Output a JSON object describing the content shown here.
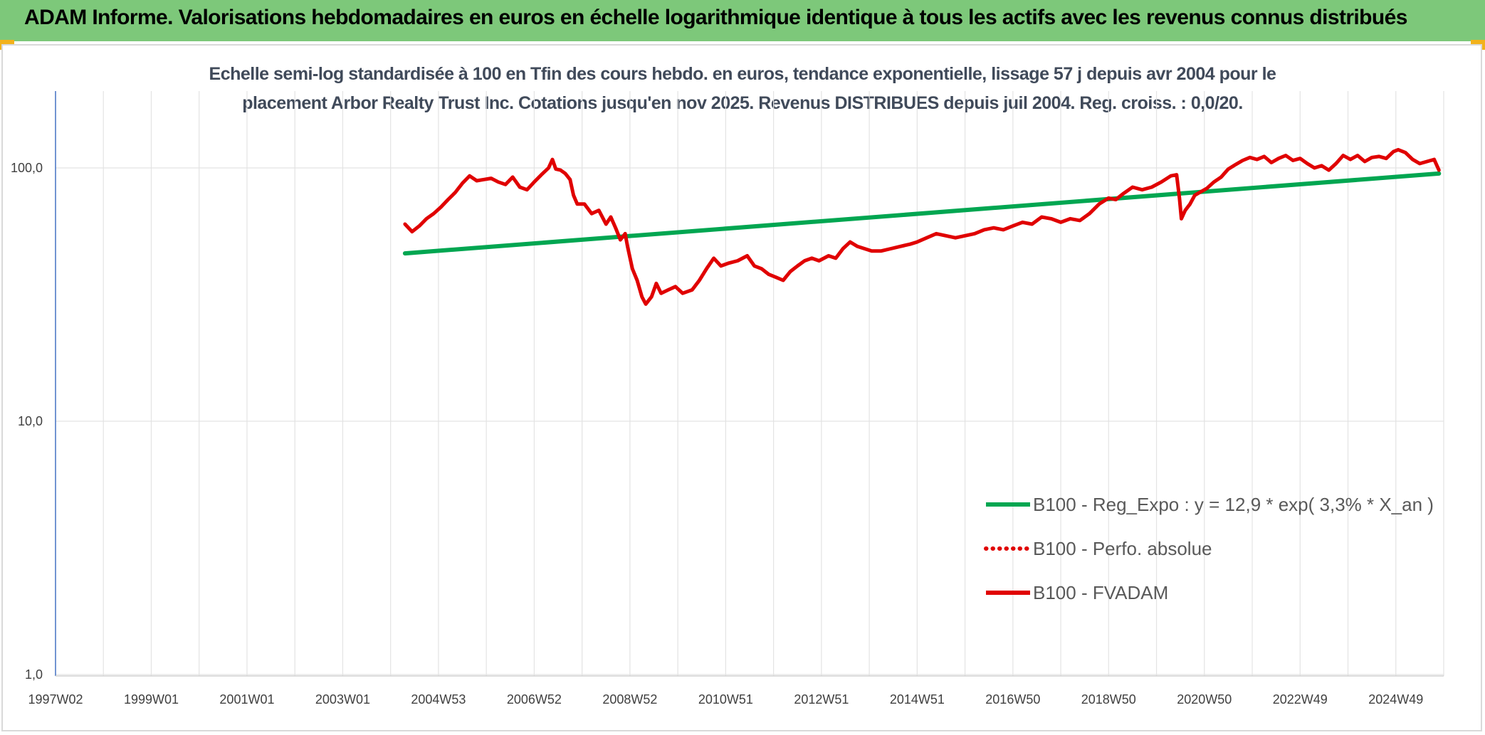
{
  "header": {
    "title": "ADAM Informe. Valorisations hebdomadaires en euros en échelle logarithmique identique à tous les actifs avec les revenus connus distribués"
  },
  "chart_data": {
    "type": "line",
    "title_line1": "Echelle semi-log standardisée à 100 en Tfin des cours hebdo. en euros, tendance exponentielle, lissage 57 j depuis avr 2004 pour le",
    "title_line2": "placement Arbor Realty Trust Inc. Cotations jusqu'en nov 2025. Revenus DISTRIBUES depuis juil 2004. Reg. croiss. : 0,0/20.",
    "yscale": "log",
    "ylim": [
      1,
      200
    ],
    "xlim": [
      1997.0,
      2026.0
    ],
    "y_ticks": [
      {
        "value": 1,
        "label": "1,0"
      },
      {
        "value": 10,
        "label": "10,0"
      },
      {
        "value": 100,
        "label": "100,0"
      }
    ],
    "x_ticks": [
      {
        "x": 1997.0,
        "label": "1997W02"
      },
      {
        "x": 1999.0,
        "label": "1999W01"
      },
      {
        "x": 2001.0,
        "label": "2001W01"
      },
      {
        "x": 2003.0,
        "label": "2003W01"
      },
      {
        "x": 2005.0,
        "label": "2004W53"
      },
      {
        "x": 2007.0,
        "label": "2006W52"
      },
      {
        "x": 2009.0,
        "label": "2008W52"
      },
      {
        "x": 2011.0,
        "label": "2010W51"
      },
      {
        "x": 2013.0,
        "label": "2012W51"
      },
      {
        "x": 2015.0,
        "label": "2014W51"
      },
      {
        "x": 2017.0,
        "label": "2016W50"
      },
      {
        "x": 2019.0,
        "label": "2018W50"
      },
      {
        "x": 2021.0,
        "label": "2020W50"
      },
      {
        "x": 2023.0,
        "label": "2022W49"
      },
      {
        "x": 2025.0,
        "label": "2024W49"
      }
    ],
    "grid": true,
    "legend_position": "bottom-right",
    "series": [
      {
        "name": "B100 - Reg_Expo : y = 12,9 * exp( 3,3% *  X_an )",
        "color": "#00a651",
        "style": "solid",
        "points": [
          [
            2004.3,
            46
          ],
          [
            2025.9,
            95
          ]
        ]
      },
      {
        "name": "B100 - Perfo. absolue",
        "color": "#e00000",
        "style": "dotted",
        "points": []
      },
      {
        "name": "B100 - FVADAM",
        "color": "#e00000",
        "style": "solid",
        "points": [
          [
            2004.3,
            60
          ],
          [
            2004.45,
            56
          ],
          [
            2004.6,
            59
          ],
          [
            2004.75,
            63
          ],
          [
            2004.9,
            66
          ],
          [
            2005.05,
            70
          ],
          [
            2005.2,
            75
          ],
          [
            2005.35,
            80
          ],
          [
            2005.5,
            87
          ],
          [
            2005.65,
            93
          ],
          [
            2005.8,
            89
          ],
          [
            2005.95,
            90
          ],
          [
            2006.1,
            91
          ],
          [
            2006.25,
            88
          ],
          [
            2006.4,
            86
          ],
          [
            2006.55,
            92
          ],
          [
            2006.7,
            84
          ],
          [
            2006.85,
            82
          ],
          [
            2007.0,
            88
          ],
          [
            2007.15,
            94
          ],
          [
            2007.3,
            100
          ],
          [
            2007.38,
            108
          ],
          [
            2007.45,
            99
          ],
          [
            2007.55,
            98
          ],
          [
            2007.65,
            95
          ],
          [
            2007.75,
            90
          ],
          [
            2007.82,
            78
          ],
          [
            2007.9,
            72
          ],
          [
            2008.05,
            72
          ],
          [
            2008.2,
            66
          ],
          [
            2008.35,
            68
          ],
          [
            2008.5,
            60
          ],
          [
            2008.6,
            64
          ],
          [
            2008.7,
            58
          ],
          [
            2008.8,
            52
          ],
          [
            2008.9,
            55
          ],
          [
            2008.95,
            49
          ],
          [
            2009.05,
            40
          ],
          [
            2009.15,
            36
          ],
          [
            2009.25,
            31
          ],
          [
            2009.33,
            29
          ],
          [
            2009.45,
            31
          ],
          [
            2009.55,
            35
          ],
          [
            2009.65,
            32
          ],
          [
            2009.8,
            33
          ],
          [
            2009.95,
            34
          ],
          [
            2010.1,
            32
          ],
          [
            2010.3,
            33
          ],
          [
            2010.45,
            36
          ],
          [
            2010.6,
            40
          ],
          [
            2010.75,
            44
          ],
          [
            2010.9,
            41
          ],
          [
            2011.05,
            42
          ],
          [
            2011.25,
            43
          ],
          [
            2011.45,
            45
          ],
          [
            2011.6,
            41
          ],
          [
            2011.75,
            40
          ],
          [
            2011.9,
            38
          ],
          [
            2012.05,
            37
          ],
          [
            2012.2,
            36
          ],
          [
            2012.35,
            39
          ],
          [
            2012.5,
            41
          ],
          [
            2012.65,
            43
          ],
          [
            2012.8,
            44
          ],
          [
            2012.95,
            43
          ],
          [
            2013.15,
            45
          ],
          [
            2013.3,
            44
          ],
          [
            2013.45,
            48
          ],
          [
            2013.6,
            51
          ],
          [
            2013.75,
            49
          ],
          [
            2013.9,
            48
          ],
          [
            2014.05,
            47
          ],
          [
            2014.25,
            47
          ],
          [
            2014.45,
            48
          ],
          [
            2014.65,
            49
          ],
          [
            2014.85,
            50
          ],
          [
            2015.0,
            51
          ],
          [
            2015.2,
            53
          ],
          [
            2015.4,
            55
          ],
          [
            2015.6,
            54
          ],
          [
            2015.8,
            53
          ],
          [
            2016.0,
            54
          ],
          [
            2016.2,
            55
          ],
          [
            2016.4,
            57
          ],
          [
            2016.6,
            58
          ],
          [
            2016.8,
            57
          ],
          [
            2017.0,
            59
          ],
          [
            2017.2,
            61
          ],
          [
            2017.4,
            60
          ],
          [
            2017.6,
            64
          ],
          [
            2017.8,
            63
          ],
          [
            2018.0,
            61
          ],
          [
            2018.2,
            63
          ],
          [
            2018.4,
            62
          ],
          [
            2018.6,
            66
          ],
          [
            2018.8,
            72
          ],
          [
            2019.0,
            76
          ],
          [
            2019.15,
            75
          ],
          [
            2019.3,
            79
          ],
          [
            2019.5,
            84
          ],
          [
            2019.7,
            82
          ],
          [
            2019.9,
            84
          ],
          [
            2020.1,
            88
          ],
          [
            2020.3,
            93
          ],
          [
            2020.42,
            94
          ],
          [
            2020.48,
            76
          ],
          [
            2020.52,
            63
          ],
          [
            2020.6,
            68
          ],
          [
            2020.7,
            72
          ],
          [
            2020.8,
            78
          ],
          [
            2020.9,
            80
          ],
          [
            2021.05,
            83
          ],
          [
            2021.2,
            88
          ],
          [
            2021.35,
            92
          ],
          [
            2021.5,
            99
          ],
          [
            2021.65,
            103
          ],
          [
            2021.8,
            107
          ],
          [
            2021.95,
            110
          ],
          [
            2022.1,
            108
          ],
          [
            2022.25,
            111
          ],
          [
            2022.4,
            105
          ],
          [
            2022.55,
            109
          ],
          [
            2022.7,
            112
          ],
          [
            2022.85,
            107
          ],
          [
            2023.0,
            109
          ],
          [
            2023.15,
            104
          ],
          [
            2023.3,
            100
          ],
          [
            2023.45,
            102
          ],
          [
            2023.6,
            98
          ],
          [
            2023.75,
            104
          ],
          [
            2023.9,
            112
          ],
          [
            2024.05,
            108
          ],
          [
            2024.2,
            112
          ],
          [
            2024.35,
            106
          ],
          [
            2024.5,
            110
          ],
          [
            2024.65,
            111
          ],
          [
            2024.8,
            109
          ],
          [
            2024.95,
            116
          ],
          [
            2025.05,
            118
          ],
          [
            2025.2,
            115
          ],
          [
            2025.35,
            108
          ],
          [
            2025.5,
            104
          ],
          [
            2025.65,
            106
          ],
          [
            2025.8,
            108
          ],
          [
            2025.9,
            98
          ]
        ]
      }
    ]
  }
}
